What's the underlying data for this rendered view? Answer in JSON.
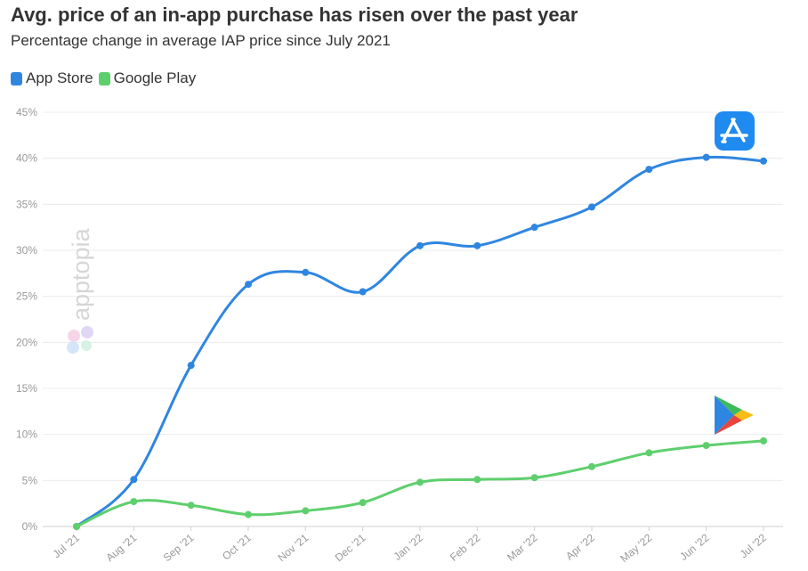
{
  "header": {
    "title": "Avg. price of an in-app purchase has risen over the past year",
    "subtitle": "Percentage change in average IAP price since July 2021"
  },
  "watermark": {
    "text": "apptopia"
  },
  "icons": {
    "app_store": "app-store-icon",
    "google_play": "google-play-icon",
    "watermark": "apptopia-logo-icon"
  },
  "chart_data": {
    "type": "line",
    "title": "Avg. price of an in-app purchase has risen over the past year",
    "subtitle": "Percentage change in average IAP price since July 2021",
    "xlabel": "",
    "ylabel": "",
    "categories": [
      "Jul '21",
      "Aug '21",
      "Sep '21",
      "Oct '21",
      "Nov '21",
      "Dec '21",
      "Jan '22",
      "Feb '22",
      "Mar '22",
      "Apr '22",
      "May '22",
      "Jun '22",
      "Jul '22"
    ],
    "ylim": [
      0,
      45
    ],
    "yticks": [
      0,
      5,
      10,
      15,
      20,
      25,
      30,
      35,
      40,
      45
    ],
    "ytick_labels": [
      "0%",
      "5%",
      "10%",
      "15%",
      "20%",
      "25%",
      "30%",
      "35%",
      "40%",
      "45%"
    ],
    "grid": true,
    "legend_position": "top-left",
    "series": [
      {
        "name": "App Store",
        "color": "#2f86e0",
        "values": [
          0,
          5.1,
          17.5,
          26.3,
          27.6,
          25.5,
          30.5,
          30.5,
          32.5,
          34.7,
          38.8,
          40.1,
          39.7
        ]
      },
      {
        "name": "Google Play",
        "color": "#5ecf6d",
        "values": [
          0,
          2.7,
          2.3,
          1.3,
          1.7,
          2.6,
          4.8,
          5.1,
          5.3,
          6.5,
          8.0,
          8.8,
          9.3
        ]
      }
    ]
  }
}
